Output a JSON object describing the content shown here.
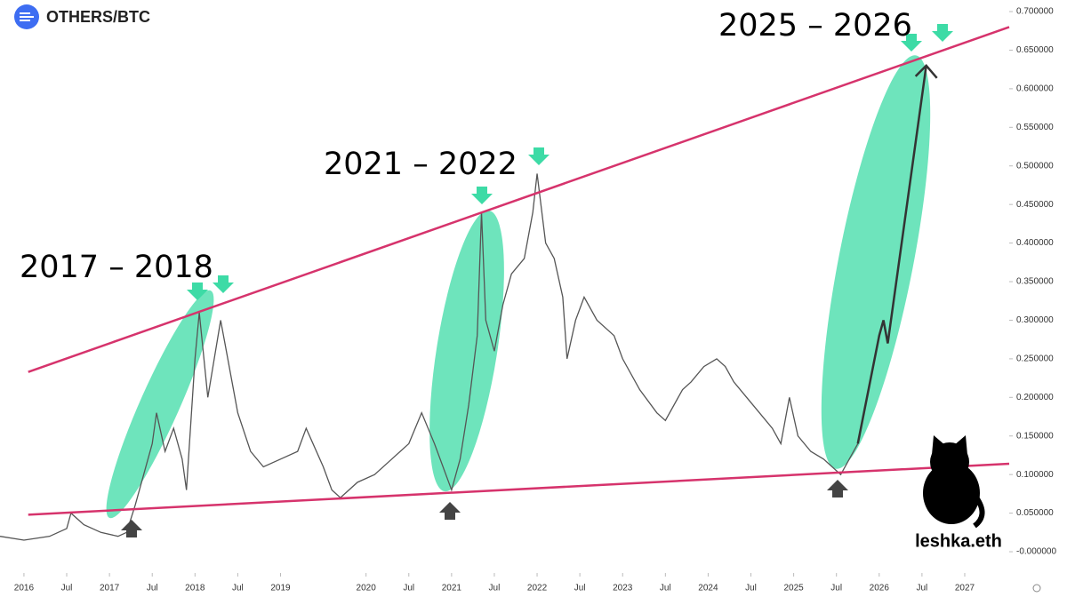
{
  "chart_data": {
    "type": "line",
    "title": "OTHERS/BTC",
    "watermark": "leshka.eth",
    "annotations": [
      "2017 – 2018",
      "2021 – 2022",
      "2025 – 2026"
    ],
    "xlim": [
      2015.72,
      2027.52
    ],
    "ylim": [
      -0.0276,
      0.715
    ],
    "xticks": [
      2016,
      {
        "value": 2016.5,
        "label": "Jul"
      },
      2017,
      {
        "value": 2017.5,
        "label": "Jul"
      },
      2018,
      {
        "value": 2018.5,
        "label": "Jul"
      },
      2019,
      2020,
      {
        "value": 2020.5,
        "label": "Jul"
      },
      2021,
      {
        "value": 2021.5,
        "label": "Jul"
      },
      2022,
      {
        "value": 2022.5,
        "label": "Jul"
      },
      2023,
      {
        "value": 2023.5,
        "label": "Jul"
      },
      2024,
      {
        "value": 2024.5,
        "label": "Jul"
      },
      2025,
      {
        "value": 2025.5,
        "label": "Jul"
      },
      2026,
      {
        "value": 2026.5,
        "label": "Jul"
      },
      2027
    ],
    "yticks": [
      {
        "value": 0.7,
        "label": "0.700000"
      },
      {
        "value": 0.65,
        "label": "0.650000"
      },
      {
        "value": 0.6,
        "label": "0.600000"
      },
      {
        "value": 0.55,
        "label": "0.550000"
      },
      {
        "value": 0.5,
        "label": "0.500000"
      },
      {
        "value": 0.45,
        "label": "0.450000"
      },
      {
        "value": 0.4,
        "label": "0.400000"
      },
      {
        "value": 0.35,
        "label": "0.350000"
      },
      {
        "value": 0.3,
        "label": "0.300000"
      },
      {
        "value": 0.25,
        "label": "0.250000"
      },
      {
        "value": 0.2,
        "label": "0.200000"
      },
      {
        "value": 0.15,
        "label": "0.150000"
      },
      {
        "value": 0.1,
        "label": "0.100000"
      },
      {
        "value": 0.05,
        "label": "0.050000"
      },
      {
        "value": 0,
        "label": "-0.000000"
      }
    ],
    "series": [
      {
        "color": "#555555",
        "x": [
          2015.72,
          2016.0,
          2016.3,
          2016.5,
          2016.55,
          2016.7,
          2016.9,
          2017.1,
          2017.2,
          2017.3,
          2017.4,
          2017.5,
          2017.55,
          2017.65,
          2017.75,
          2017.85,
          2017.9,
          2018.0,
          2018.05,
          2018.15,
          2018.3,
          2018.4,
          2018.5,
          2018.65,
          2018.8,
          2019.0,
          2019.2,
          2019.3,
          2019.5,
          2019.6,
          2019.7,
          2019.9,
          2020.1,
          2020.3,
          2020.5,
          2020.65,
          2020.8,
          2021.0,
          2021.1,
          2021.2,
          2021.3,
          2021.35,
          2021.4,
          2021.5,
          2021.6,
          2021.7,
          2021.85,
          2021.95,
          2022.0,
          2022.1,
          2022.2,
          2022.3,
          2022.35,
          2022.45,
          2022.55,
          2022.7,
          2022.9,
          2023.0,
          2023.2,
          2023.4,
          2023.5,
          2023.7,
          2023.8,
          2023.95,
          2024.1,
          2024.2,
          2024.3,
          2024.45,
          2024.6,
          2024.75,
          2024.85,
          2024.95,
          2025.05,
          2025.2,
          2025.35,
          2025.45,
          2025.55,
          2025.65,
          2025.75
        ],
        "values": [
          0.02,
          0.015,
          0.02,
          0.03,
          0.05,
          0.035,
          0.025,
          0.02,
          0.025,
          0.06,
          0.1,
          0.14,
          0.18,
          0.13,
          0.16,
          0.12,
          0.08,
          0.25,
          0.31,
          0.2,
          0.3,
          0.24,
          0.18,
          0.13,
          0.11,
          0.12,
          0.13,
          0.16,
          0.11,
          0.08,
          0.07,
          0.09,
          0.1,
          0.12,
          0.14,
          0.18,
          0.14,
          0.08,
          0.12,
          0.19,
          0.28,
          0.44,
          0.3,
          0.26,
          0.32,
          0.36,
          0.38,
          0.44,
          0.49,
          0.4,
          0.38,
          0.33,
          0.25,
          0.3,
          0.33,
          0.3,
          0.28,
          0.25,
          0.21,
          0.18,
          0.17,
          0.21,
          0.22,
          0.24,
          0.25,
          0.24,
          0.22,
          0.2,
          0.18,
          0.16,
          0.14,
          0.2,
          0.15,
          0.13,
          0.12,
          0.11,
          0.1,
          0.12,
          0.14
        ]
      }
    ],
    "trendlines": [
      {
        "color": "#d6336c",
        "x": [
          2016.05,
          2027.52
        ],
        "values": [
          0.233,
          0.68
        ]
      },
      {
        "color": "#d6336c",
        "x": [
          2016.05,
          2027.52
        ],
        "values": [
          0.048,
          0.114
        ]
      }
    ],
    "projection": {
      "color": "#333333",
      "x": [
        2025.75,
        2026.0,
        2026.05,
        2026.1,
        2026.55
      ],
      "values": [
        0.14,
        0.28,
        0.3,
        0.27,
        0.63
      ]
    }
  }
}
